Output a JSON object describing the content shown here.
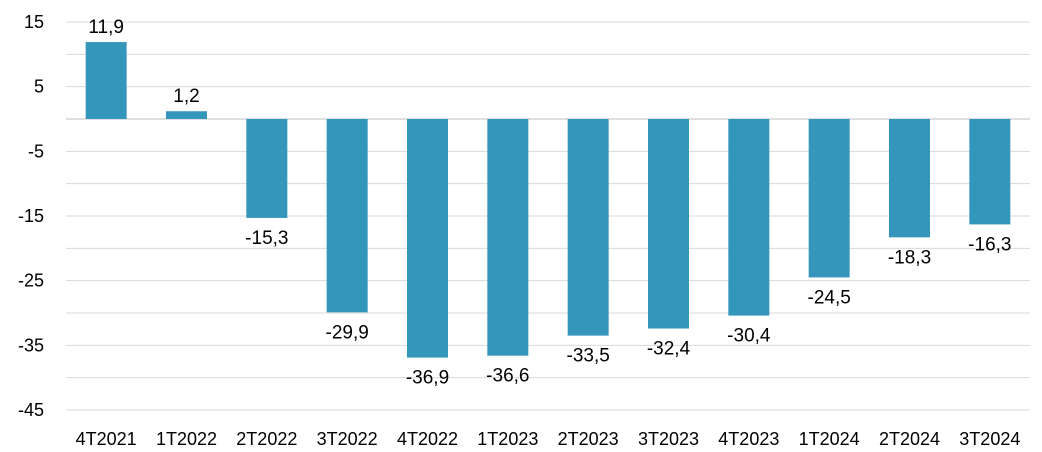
{
  "chart_data": {
    "type": "bar",
    "title": "",
    "xlabel": "",
    "ylabel": "",
    "categories": [
      "4T2021",
      "1T2022",
      "2T2022",
      "3T2022",
      "4T2022",
      "1T2023",
      "2T2023",
      "3T2023",
      "4T2023",
      "1T2024",
      "2T2024",
      "3T2024"
    ],
    "values": [
      11.9,
      1.2,
      -15.3,
      -29.9,
      -36.9,
      -36.6,
      -33.5,
      -32.4,
      -30.4,
      -24.5,
      -18.3,
      -16.3
    ],
    "value_labels": [
      "11,9",
      "1,2",
      "-15,3",
      "-29,9",
      "-36,9",
      "-36,6",
      "-33,5",
      "-32,4",
      "-30,4",
      "-24,5",
      "-18,3",
      "-16,3"
    ],
    "yticks": [
      15,
      5,
      -5,
      -15,
      -25,
      -35,
      -45
    ],
    "ylim": [
      -45,
      15
    ],
    "grid": true,
    "legend": "none",
    "colors": {
      "bar": "#3596bc",
      "grid": "#d9d9d9",
      "text": "#000000"
    }
  }
}
